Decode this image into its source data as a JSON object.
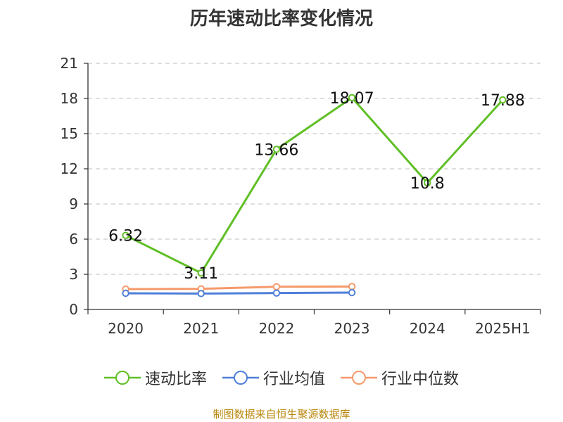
{
  "title": "历年速动比率变化情况",
  "source": "制图数据来自恒生聚源数据库",
  "chart_data": {
    "type": "line",
    "categories": [
      "2020",
      "2021",
      "2022",
      "2023",
      "2024",
      "2025H1"
    ],
    "ylim": [
      0,
      21
    ],
    "yticks": [
      0,
      3,
      6,
      9,
      12,
      15,
      18,
      21
    ],
    "grid": true,
    "legend_position": "bottom",
    "series": [
      {
        "name": "速动比率",
        "color": "#5fbf26",
        "values": [
          6.32,
          3.11,
          13.66,
          18.07,
          10.8,
          17.88
        ],
        "labels": [
          "6.32",
          "3.11",
          "13.66",
          "18.07",
          "10.8",
          "17.88"
        ],
        "show_labels": true
      },
      {
        "name": "行业均值",
        "color": "#4f7fd9",
        "values": [
          1.38,
          1.36,
          1.4,
          1.44,
          null,
          null
        ],
        "show_labels": false
      },
      {
        "name": "行业中位数",
        "color": "#f59a6b",
        "values": [
          1.74,
          1.76,
          1.94,
          1.96,
          null,
          null
        ],
        "show_labels": false
      }
    ]
  }
}
